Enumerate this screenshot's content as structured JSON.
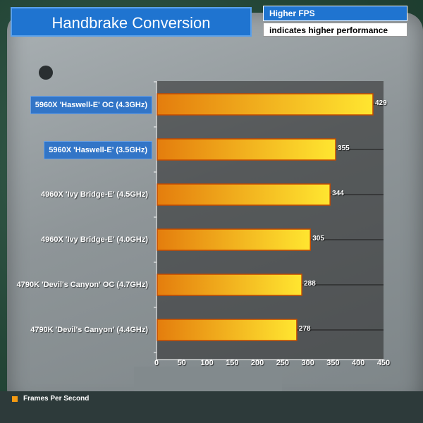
{
  "header": {
    "title": "Handbrake Conversion",
    "legend_primary": "Higher FPS",
    "legend_secondary": "indicates higher performance"
  },
  "footer": {
    "series_label": "Frames Per Second"
  },
  "colors": {
    "bar_start": "#e47d0d",
    "bar_end": "#ffe630",
    "bar_border": "#c44a00",
    "highlight_label": "#3275c7",
    "title_bg": "#1f74d0"
  },
  "chart_data": {
    "type": "bar",
    "orientation": "horizontal",
    "title": "Handbrake Conversion",
    "categories": [
      "5960X 'Haswell-E' OC (4.3GHz)",
      "5960X 'Haswell-E' (3.5GHz)",
      "4960X 'Ivy Bridge-E' (4.5GHz)",
      "4960X 'Ivy Bridge-E' (4.0GHz)",
      "4790K 'Devil's Canyon' OC (4.7GHz)",
      "4790K 'Devil's Canyon' (4.4GHz)"
    ],
    "highlighted": [
      true,
      true,
      false,
      false,
      false,
      false
    ],
    "values": [
      429,
      355,
      344,
      305,
      288,
      278
    ],
    "value_labels": [
      "429",
      "355",
      "344",
      "305",
      "288",
      "278"
    ],
    "xlim": [
      0,
      450
    ],
    "ticks": [
      0,
      50,
      100,
      150,
      200,
      250,
      300,
      350,
      400,
      450
    ],
    "tick_labels": [
      "0",
      "50",
      "100",
      "150",
      "200",
      "250",
      "300",
      "350",
      "400",
      "450"
    ],
    "series": [
      {
        "name": "Frames Per Second",
        "values": [
          429,
          355,
          344,
          305,
          288,
          278
        ]
      }
    ],
    "grid": true,
    "legend_position": "bottom-left"
  }
}
